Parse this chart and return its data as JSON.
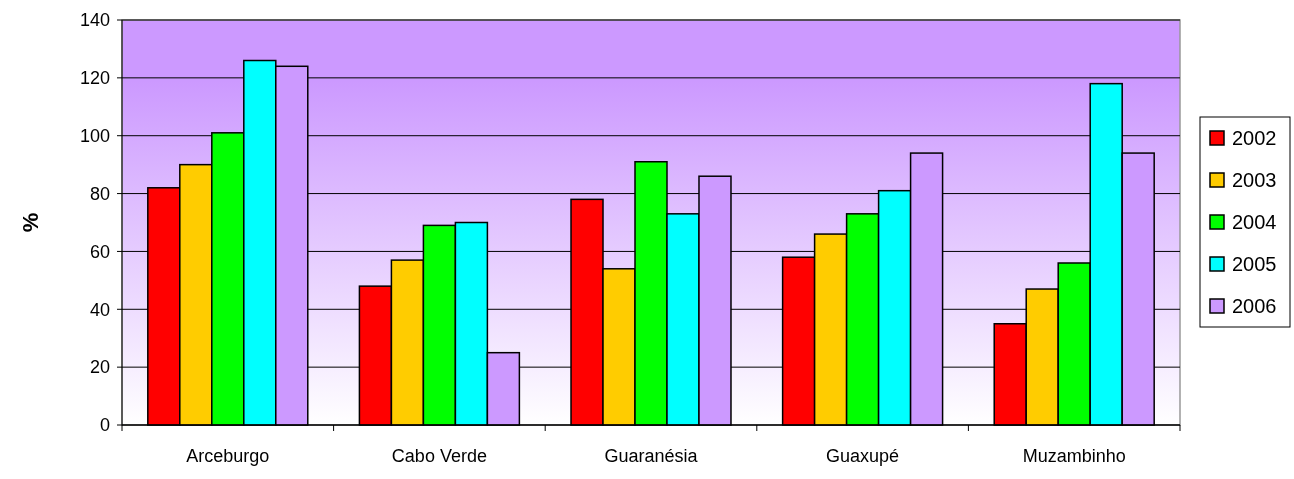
{
  "chart_data": {
    "type": "bar",
    "ylabel": "%",
    "categories": [
      "Arceburgo",
      "Cabo Verde",
      "Guaranésia",
      "Guaxupé",
      "Muzambinho"
    ],
    "series": [
      {
        "name": "2002",
        "color": "#ff0000",
        "values": [
          82,
          48,
          78,
          58,
          35
        ]
      },
      {
        "name": "2003",
        "color": "#ffcc00",
        "values": [
          90,
          57,
          54,
          66,
          47
        ]
      },
      {
        "name": "2004",
        "color": "#00ff00",
        "values": [
          101,
          69,
          91,
          73,
          56
        ]
      },
      {
        "name": "2005",
        "color": "#00ffff",
        "values": [
          126,
          70,
          73,
          81,
          118
        ]
      },
      {
        "name": "2006",
        "color": "#cc99ff",
        "values": [
          124,
          25,
          86,
          94,
          94
        ]
      }
    ],
    "ylim": [
      0,
      140
    ],
    "yticks": [
      0,
      20,
      40,
      60,
      80,
      100,
      120,
      140
    ],
    "grid": "y",
    "legend": "right"
  }
}
